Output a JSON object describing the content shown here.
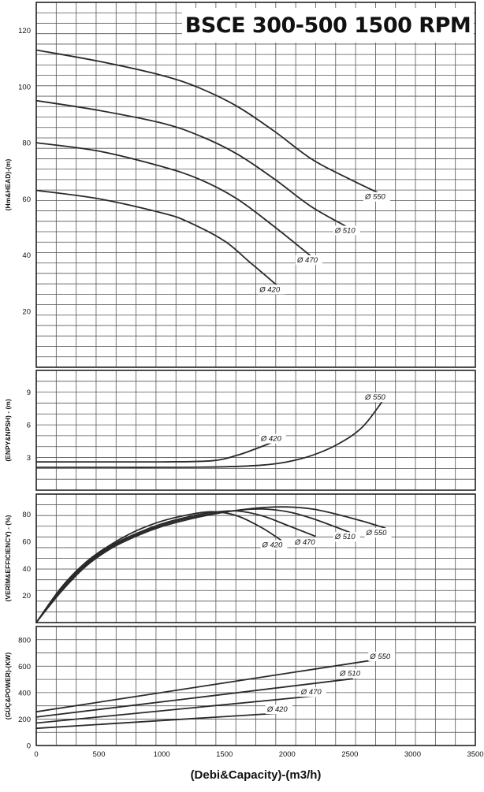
{
  "title": "BSCE 300-500 1500 RPM",
  "colors": {
    "grid": "#555555",
    "curve": "#2a2a2a",
    "background": "#ffffff"
  },
  "chart_data": [
    {
      "id": "head",
      "type": "line",
      "ylabel": "(Hm&HEAD)-(m)",
      "xlim": [
        0,
        3500
      ],
      "ylim": [
        0,
        130
      ],
      "yticks": [
        20,
        40,
        60,
        80,
        100,
        120
      ],
      "grid": true,
      "series": [
        {
          "name": "Ø 550",
          "x": [
            0,
            500,
            1000,
            1300,
            1600,
            1900,
            2200,
            2500,
            2780
          ],
          "y": [
            113,
            109,
            104,
            99.5,
            93,
            84,
            74,
            67,
            61
          ]
        },
        {
          "name": "Ø 510",
          "x": [
            0,
            500,
            1000,
            1300,
            1600,
            1900,
            2200,
            2520
          ],
          "y": [
            95,
            91.5,
            87,
            82.5,
            76,
            67,
            57,
            49
          ]
        },
        {
          "name": "Ø 470",
          "x": [
            0,
            500,
            1000,
            1300,
            1600,
            1900,
            2220
          ],
          "y": [
            80,
            77,
            71.5,
            67,
            60,
            50,
            38.5
          ]
        },
        {
          "name": "Ø 420",
          "x": [
            0,
            500,
            1000,
            1200,
            1500,
            1700,
            1950
          ],
          "y": [
            63,
            60,
            55,
            52,
            45,
            37.5,
            28
          ]
        }
      ]
    },
    {
      "id": "npsh",
      "type": "line",
      "ylabel": "(ENPY&NPSH) - (m)",
      "xlim": [
        0,
        3500
      ],
      "ylim": [
        0,
        11
      ],
      "yticks": [
        3,
        6,
        9
      ],
      "grid": true,
      "series": [
        {
          "name": "Ø 420",
          "x": [
            0,
            500,
            1000,
            1400,
            1600,
            1750,
            1950
          ],
          "y": [
            2.6,
            2.6,
            2.6,
            2.7,
            3.2,
            3.8,
            4.7
          ]
        },
        {
          "name": "Ø 550",
          "x": [
            0,
            500,
            1000,
            1500,
            1800,
            2000,
            2200,
            2400,
            2600,
            2780
          ],
          "y": [
            2.1,
            2.1,
            2.1,
            2.15,
            2.3,
            2.6,
            3.2,
            4.2,
            5.8,
            8.5
          ]
        }
      ]
    },
    {
      "id": "efficiency",
      "type": "line",
      "ylabel": "(VERİM&EFFICIENCY) - (%)",
      "xlim": [
        0,
        3500
      ],
      "ylim": [
        0,
        95
      ],
      "yticks": [
        20,
        40,
        60,
        80
      ],
      "grid": true,
      "series": [
        {
          "name": "Ø 420",
          "x": [
            0,
            200,
            400,
            600,
            800,
            1000,
            1200,
            1400,
            1600,
            1800,
            1950
          ],
          "y": [
            0,
            26,
            45,
            58,
            68,
            75,
            79.5,
            82,
            79,
            70,
            61
          ]
        },
        {
          "name": "Ø 470",
          "x": [
            0,
            200,
            400,
            600,
            800,
            1000,
            1200,
            1400,
            1600,
            1800,
            2000,
            2220
          ],
          "y": [
            0,
            25,
            44,
            57,
            66,
            73,
            78,
            81.5,
            82.5,
            79,
            72,
            64
          ]
        },
        {
          "name": "Ø 510",
          "x": [
            0,
            200,
            400,
            600,
            800,
            1000,
            1200,
            1400,
            1600,
            1800,
            2000,
            2200,
            2520
          ],
          "y": [
            0,
            24,
            43,
            56,
            65,
            72,
            77,
            80.5,
            83,
            84,
            82,
            77,
            66
          ]
        },
        {
          "name": "Ø 550",
          "x": [
            0,
            200,
            400,
            600,
            800,
            1000,
            1200,
            1400,
            1600,
            1800,
            2000,
            2200,
            2400,
            2600,
            2780
          ],
          "y": [
            0,
            23,
            42,
            55,
            64,
            71,
            76,
            80,
            83,
            85,
            85.5,
            84,
            80,
            75,
            70
          ]
        }
      ]
    },
    {
      "id": "power",
      "type": "line",
      "ylabel": "(GÜÇ&POWER)-(KW)",
      "xlabel": "(Debi&Capacity)-(m3/h)",
      "xlim": [
        0,
        3500
      ],
      "ylim": [
        0,
        900
      ],
      "yticks": [
        0,
        200,
        400,
        600,
        800
      ],
      "xticks": [
        0,
        500,
        1000,
        1500,
        2000,
        2500,
        3000,
        3500
      ],
      "grid": true,
      "series": [
        {
          "name": "Ø 550",
          "x": [
            0,
            2780
          ],
          "y": [
            255,
            660
          ]
        },
        {
          "name": "Ø 510",
          "x": [
            0,
            2520
          ],
          "y": [
            215,
            505
          ]
        },
        {
          "name": "Ø 470",
          "x": [
            0,
            2220
          ],
          "y": [
            170,
            375
          ]
        },
        {
          "name": "Ø 420",
          "x": [
            0,
            1950
          ],
          "y": [
            130,
            245
          ]
        }
      ]
    }
  ]
}
